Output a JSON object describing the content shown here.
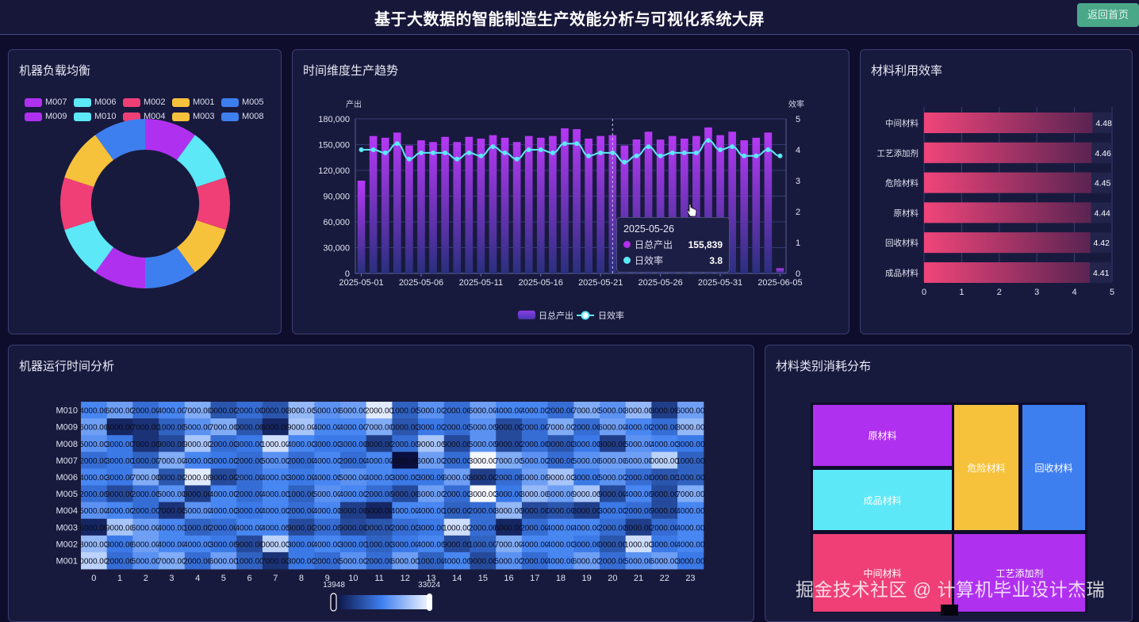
{
  "header": {
    "title": "基于大数据的智能制造生产效能分析与可视化系统大屏",
    "back_button": "返回首页"
  },
  "panels": {
    "machine_load": {
      "title": "机器负载均衡"
    },
    "production_trend": {
      "title": "时间维度生产趋势"
    },
    "material_efficiency": {
      "title": "材料利用效率"
    },
    "machine_runtime": {
      "title": "机器运行时间分析"
    },
    "material_consumption": {
      "title": "材料类别消耗分布"
    }
  },
  "tooltip": {
    "date": "2025-05-26",
    "series1_label": "日总产出",
    "series1_value": "155,839",
    "series2_label": "日效率",
    "series2_value": "3.8"
  },
  "watermark": "掘金技术社区 @ 计算机毕业设计杰瑞",
  "colors": {
    "purple": "#b030f0",
    "cyan": "#5ce8f7",
    "pink": "#ef3f76",
    "yellow": "#f7c23b",
    "blue": "#3e7ff0",
    "button": "#4aa889"
  },
  "chart_data": [
    {
      "id": "machine_load",
      "type": "pie",
      "title": "机器负载均衡",
      "donut": true,
      "legend": [
        "M007",
        "M006",
        "M002",
        "M001",
        "M005",
        "M009",
        "M010",
        "M004",
        "M003",
        "M008"
      ],
      "legend_colors": [
        "#b030f0",
        "#5ce8f7",
        "#ef3f76",
        "#f7c23b",
        "#3e7ff0",
        "#b030f0",
        "#5ce8f7",
        "#ef3f76",
        "#f7c23b",
        "#3e7ff0"
      ],
      "slices": [
        {
          "name": "M007",
          "value": 10,
          "color": "#b030f0"
        },
        {
          "name": "M006",
          "value": 10,
          "color": "#5ce8f7"
        },
        {
          "name": "M002",
          "value": 10,
          "color": "#ef3f76"
        },
        {
          "name": "M001",
          "value": 10,
          "color": "#f7c23b"
        },
        {
          "name": "M005",
          "value": 10,
          "color": "#3e7ff0"
        },
        {
          "name": "M009",
          "value": 10,
          "color": "#b030f0"
        },
        {
          "name": "M010",
          "value": 10,
          "color": "#5ce8f7"
        },
        {
          "name": "M004",
          "value": 10,
          "color": "#ef3f76"
        },
        {
          "name": "M003",
          "value": 10,
          "color": "#f7c23b"
        },
        {
          "name": "M008",
          "value": 10,
          "color": "#3e7ff0"
        }
      ]
    },
    {
      "id": "production_trend",
      "type": "bar+line",
      "title": "时间维度生产趋势",
      "ylabel_left": "产出",
      "ylabel_right": "效率",
      "ylim_left": [
        0,
        180000
      ],
      "yticks_left": [
        "0",
        "30,000",
        "60,000",
        "90,000",
        "120,000",
        "150,000",
        "180,000"
      ],
      "ylim_right": [
        0,
        5
      ],
      "yticks_right": [
        "0",
        "1",
        "2",
        "3",
        "4",
        "5"
      ],
      "xtick_labels": [
        "2025-05-01",
        "2025-05-06",
        "2025-05-11",
        "2025-05-16",
        "2025-05-21",
        "2025-05-26",
        "2025-05-31",
        "2025-06-05"
      ],
      "legend": [
        "日总产出",
        "日效率"
      ],
      "x": [
        "05-01",
        "05-02",
        "05-03",
        "05-04",
        "05-05",
        "05-06",
        "05-07",
        "05-08",
        "05-09",
        "05-10",
        "05-11",
        "05-12",
        "05-13",
        "05-14",
        "05-15",
        "05-16",
        "05-17",
        "05-18",
        "05-19",
        "05-20",
        "05-21",
        "05-22",
        "05-23",
        "05-24",
        "05-25",
        "05-26",
        "05-27",
        "05-28",
        "05-29",
        "05-30",
        "05-31",
        "06-01",
        "06-02",
        "06-03",
        "06-04",
        "06-05"
      ],
      "series": [
        {
          "name": "日总产出",
          "type": "bar",
          "values": [
            108000,
            160000,
            158000,
            164000,
            149000,
            155000,
            153000,
            159000,
            153000,
            159000,
            157000,
            161000,
            158000,
            153000,
            160000,
            158000,
            160000,
            169000,
            168000,
            157000,
            160000,
            161000,
            149000,
            156000,
            165000,
            155839,
            160000,
            157000,
            160000,
            170000,
            161000,
            165000,
            155000,
            158000,
            164000,
            6000
          ]
        },
        {
          "name": "日效率",
          "type": "line",
          "values": [
            4.0,
            4.0,
            3.9,
            4.2,
            3.7,
            3.9,
            3.9,
            3.9,
            3.7,
            3.9,
            3.8,
            4.1,
            3.9,
            3.7,
            4.0,
            4.0,
            3.9,
            4.2,
            4.2,
            3.8,
            3.9,
            3.9,
            3.6,
            3.8,
            4.1,
            3.8,
            3.9,
            3.9,
            3.9,
            4.3,
            4.0,
            4.1,
            3.8,
            3.8,
            4.0,
            3.8
          ]
        }
      ]
    },
    {
      "id": "material_efficiency",
      "type": "bar",
      "orientation": "horizontal",
      "title": "材料利用效率",
      "categories": [
        "中间材料",
        "工艺添加剂",
        "危险材料",
        "原材料",
        "回收材料",
        "成品材料"
      ],
      "values": [
        4.48,
        4.46,
        4.45,
        4.44,
        4.42,
        4.41
      ],
      "xlim": [
        0,
        5
      ],
      "xticks": [
        "0",
        "1",
        "2",
        "3",
        "4",
        "5"
      ]
    },
    {
      "id": "machine_runtime",
      "type": "heatmap",
      "title": "机器运行时间分析",
      "y": [
        "M010",
        "M009",
        "M008",
        "M007",
        "M006",
        "M005",
        "M004",
        "M003",
        "M002",
        "M001"
      ],
      "x": [
        "0",
        "1",
        "2",
        "3",
        "4",
        "5",
        "6",
        "7",
        "8",
        "9",
        "10",
        "11",
        "12",
        "13",
        "14",
        "15",
        "16",
        "17",
        "18",
        "19",
        "20",
        "21",
        "22",
        "23"
      ],
      "visual_map": {
        "min": 13948,
        "max": 33024,
        "min_label": "13948",
        "max_label": "33024"
      },
      "values": [
        [
          24000,
          26000,
          22000,
          24000,
          27000,
          20000,
          22000,
          20000,
          28000,
          25000,
          26000,
          32000,
          21000,
          25000,
          22000,
          26000,
          24000,
          24000,
          22000,
          27000,
          25000,
          28000,
          18000,
          26000
        ],
        [
          26000,
          16000,
          17000,
          21000,
          25000,
          27000,
          20000,
          16000,
          29000,
          24000,
          24000,
          27000,
          20000,
          23000,
          22000,
          25000,
          19000,
          22000,
          27000,
          22000,
          26000,
          24000,
          22000,
          28000
        ],
        [
          25000,
          23000,
          17000,
          19000,
          29000,
          22000,
          23000,
          31000,
          24000,
          23000,
          23000,
          18000,
          22000,
          29000,
          19000,
          25000,
          19000,
          22000,
          20000,
          23000,
          18000,
          25000,
          24000,
          23000
        ],
        [
          22000,
          23000,
          21000,
          27000,
          24000,
          23000,
          22000,
          25000,
          22000,
          24000,
          22000,
          24000,
          14000,
          26000,
          22000,
          33000,
          27000,
          25000,
          22000,
          25000,
          26000,
          26000,
          30000,
          21000
        ],
        [
          24000,
          23000,
          27000,
          20000,
          32000,
          19000,
          22000,
          24000,
          23000,
          24000,
          25000,
          24000,
          23000,
          23000,
          26000,
          18000,
          22000,
          26000,
          29000,
          23000,
          25000,
          22000,
          20000,
          21000
        ],
        [
          22000,
          19000,
          22000,
          25000,
          18000,
          24000,
          22000,
          24000,
          21000,
          25000,
          24000,
          22000,
          19000,
          26000,
          22000,
          33000,
          23000,
          28000,
          26000,
          29000,
          19000,
          24000,
          19000,
          27000
        ],
        [
          25000,
          24000,
          22000,
          17000,
          25000,
          24000,
          23000,
          24000,
          22000,
          24000,
          18000,
          16000,
          24000,
          24000,
          21000,
          22000,
          28000,
          19000,
          20000,
          18000,
          23000,
          22000,
          19000,
          24000
        ],
        [
          16000,
          29000,
          26000,
          24000,
          21000,
          22000,
          24000,
          24000,
          19000,
          22000,
          19000,
          20000,
          22000,
          23000,
          31000,
          22000,
          16000,
          22000,
          24000,
          24000,
          22000,
          18000,
          22000,
          24000
        ],
        [
          28000,
          23000,
          26000,
          24000,
          24000,
          23000,
          19000,
          30000,
          23000,
          24000,
          23000,
          21000,
          23000,
          24000,
          19000,
          21000,
          27000,
          24000,
          24000,
          23000,
          20000,
          31000,
          23000,
          24000
        ],
        [
          30000,
          22000,
          25000,
          27000,
          22000,
          26000,
          21000,
          17000,
          23000,
          22000,
          25000,
          22000,
          26000,
          21000,
          24000,
          19000,
          25000,
          22000,
          24000,
          26000,
          22000,
          25000,
          26000,
          23000
        ]
      ]
    },
    {
      "id": "material_consumption",
      "type": "treemap",
      "title": "材料类别消耗分布",
      "nodes": [
        {
          "name": "原材料",
          "color": "#b030f0"
        },
        {
          "name": "成品材料",
          "color": "#5ce8f7"
        },
        {
          "name": "危险材料",
          "color": "#f7c23b"
        },
        {
          "name": "回收材料",
          "color": "#3e7ff0"
        },
        {
          "name": "中间材料",
          "color": "#ef3f76"
        },
        {
          "name": "工艺添加剂",
          "color": "#b030f0"
        }
      ]
    }
  ]
}
